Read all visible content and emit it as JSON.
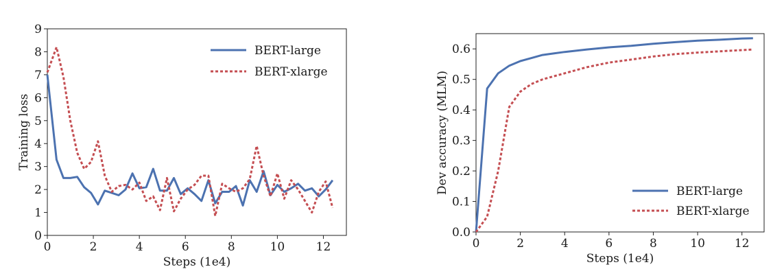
{
  "chart_data": [
    {
      "type": "line",
      "xlabel": "Steps (1e4)",
      "ylabel": "Training loss",
      "xlim": [
        0,
        13
      ],
      "ylim": [
        0,
        9
      ],
      "xticks": [
        0,
        2,
        4,
        6,
        8,
        10,
        12
      ],
      "yticks": [
        0,
        1,
        2,
        3,
        4,
        5,
        6,
        7,
        8,
        9
      ],
      "grid": false,
      "legend_position": "top-right",
      "series": [
        {
          "name": "BERT-large",
          "color": "#4c72b0",
          "style": "solid",
          "x": [
            0,
            0.4,
            0.7,
            1.0,
            1.3,
            1.6,
            1.9,
            2.2,
            2.5,
            2.8,
            3.1,
            3.4,
            3.7,
            4.0,
            4.3,
            4.6,
            4.9,
            5.2,
            5.5,
            5.8,
            6.1,
            6.4,
            6.7,
            7.0,
            7.3,
            7.6,
            7.9,
            8.2,
            8.5,
            8.8,
            9.1,
            9.4,
            9.7,
            10.0,
            10.3,
            10.6,
            10.9,
            11.2,
            11.5,
            11.8,
            12.1,
            12.4
          ],
          "y": [
            7.0,
            3.3,
            2.5,
            2.5,
            2.55,
            2.1,
            1.85,
            1.35,
            1.95,
            1.85,
            1.75,
            2.0,
            2.7,
            2.05,
            2.1,
            2.9,
            1.95,
            1.95,
            2.5,
            1.8,
            2.05,
            1.8,
            1.5,
            2.4,
            1.4,
            1.9,
            1.9,
            2.15,
            1.3,
            2.4,
            1.9,
            2.8,
            1.75,
            2.2,
            1.9,
            2.05,
            2.25,
            1.95,
            2.05,
            1.7,
            2.0,
            2.4
          ]
        },
        {
          "name": "BERT-xlarge",
          "color": "#c44e52",
          "style": "dotted",
          "x": [
            0,
            0.4,
            0.7,
            1.0,
            1.3,
            1.6,
            1.9,
            2.2,
            2.5,
            2.8,
            3.1,
            3.4,
            3.7,
            4.0,
            4.3,
            4.6,
            4.9,
            5.2,
            5.5,
            5.8,
            6.1,
            6.4,
            6.7,
            7.0,
            7.3,
            7.6,
            7.9,
            8.2,
            8.5,
            8.8,
            9.1,
            9.4,
            9.7,
            10.0,
            10.3,
            10.6,
            10.9,
            11.2,
            11.5,
            11.8,
            12.1,
            12.4
          ],
          "y": [
            7.1,
            8.2,
            6.9,
            5.0,
            3.6,
            2.9,
            3.2,
            4.1,
            2.6,
            1.9,
            2.15,
            2.2,
            2.0,
            2.3,
            1.5,
            1.7,
            1.1,
            2.5,
            1.05,
            1.6,
            2.0,
            2.2,
            2.6,
            2.6,
            0.85,
            2.25,
            2.05,
            1.9,
            2.05,
            2.45,
            3.9,
            2.6,
            1.7,
            2.7,
            1.6,
            2.4,
            2.0,
            1.5,
            1.0,
            1.9,
            2.35,
            1.2
          ]
        }
      ]
    },
    {
      "type": "line",
      "xlabel": "Steps (1e4)",
      "ylabel": "Dev accuracy (MLM)",
      "xlim": [
        0,
        13
      ],
      "ylim": [
        0,
        0.65
      ],
      "xticks": [
        0,
        2,
        4,
        6,
        8,
        10,
        12
      ],
      "yticks": [
        0.0,
        0.1,
        0.2,
        0.3,
        0.4,
        0.5,
        0.6
      ],
      "ytick_labels": [
        "0.0",
        "0.1",
        "0.2",
        "0.3",
        "0.4",
        "0.5",
        "0.6"
      ],
      "grid": false,
      "legend_position": "bottom-right",
      "series": [
        {
          "name": "BERT-large",
          "color": "#4c72b0",
          "style": "solid",
          "x": [
            0,
            0.5,
            1.0,
            1.5,
            2.0,
            2.5,
            3.0,
            3.5,
            4.0,
            5.0,
            6.0,
            7.0,
            8.0,
            9.0,
            10.0,
            11.0,
            12.0,
            12.5
          ],
          "y": [
            0.0,
            0.47,
            0.52,
            0.545,
            0.56,
            0.57,
            0.58,
            0.585,
            0.59,
            0.598,
            0.605,
            0.61,
            0.617,
            0.622,
            0.627,
            0.63,
            0.634,
            0.635
          ]
        },
        {
          "name": "BERT-xlarge",
          "color": "#c44e52",
          "style": "dotted",
          "x": [
            0,
            0.5,
            1.0,
            1.5,
            2.0,
            2.5,
            3.0,
            3.5,
            4.0,
            5.0,
            6.0,
            7.0,
            8.0,
            9.0,
            10.0,
            11.0,
            12.0,
            12.5
          ],
          "y": [
            0.0,
            0.05,
            0.2,
            0.41,
            0.46,
            0.485,
            0.5,
            0.51,
            0.52,
            0.54,
            0.555,
            0.565,
            0.575,
            0.583,
            0.588,
            0.592,
            0.596,
            0.598
          ]
        }
      ]
    }
  ]
}
